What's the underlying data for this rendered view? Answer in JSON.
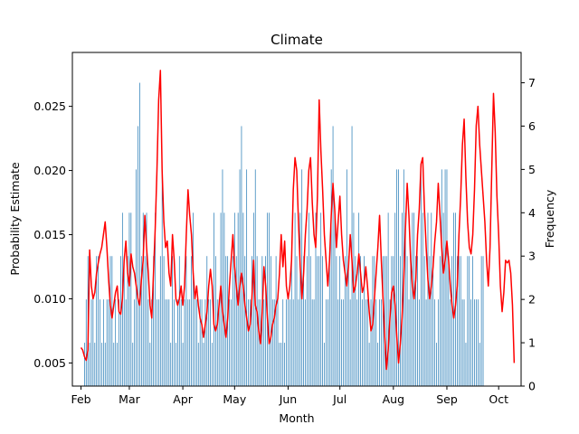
{
  "chart_data": {
    "type": "bar+line",
    "title": "Climate",
    "xlabel": "Month",
    "ylabel_left": "Probability Estimate",
    "ylabel_right": "Frequency",
    "x_tick_labels": [
      "Feb",
      "Mar",
      "Apr",
      "May",
      "Jun",
      "Jul",
      "Aug",
      "Sep",
      "Oct"
    ],
    "x_range_days": [
      -5,
      255
    ],
    "x_tick_days": [
      0,
      28,
      59,
      89,
      120,
      150,
      181,
      212,
      242
    ],
    "left_ylim": [
      0.0032,
      0.0292
    ],
    "left_ticks": [
      0.005,
      0.01,
      0.015,
      0.02,
      0.025
    ],
    "left_tick_labels": [
      "0.005",
      "0.010",
      "0.015",
      "0.020",
      "0.025"
    ],
    "right_ylim": [
      0,
      7.7
    ],
    "right_ticks": [
      0,
      1,
      2,
      3,
      4,
      5,
      6,
      7
    ],
    "right_tick_labels": [
      "0",
      "1",
      "2",
      "3",
      "4",
      "5",
      "6",
      "7"
    ],
    "grid": false,
    "bar_color": "#1f77b4",
    "line_color": "#ff0000",
    "bar_series": {
      "name": "Frequency",
      "start_day": 2,
      "values": [
        1,
        2,
        3,
        1,
        2,
        2,
        1,
        3,
        3,
        2,
        1,
        2,
        1,
        2,
        2,
        3,
        3,
        1,
        2,
        1,
        2,
        3,
        4,
        3,
        2,
        3,
        4,
        4,
        1,
        2,
        5,
        6,
        7,
        3,
        4,
        3,
        4,
        2,
        1,
        2,
        3,
        4,
        2,
        2,
        3,
        5,
        3,
        2,
        2,
        2,
        1,
        3,
        2,
        1,
        2,
        3,
        2,
        1,
        2,
        3,
        2,
        2,
        3,
        4,
        2,
        2,
        1,
        2,
        2,
        1,
        2,
        3,
        2,
        2,
        1,
        4,
        3,
        2,
        2,
        4,
        5,
        4,
        3,
        3,
        2,
        2,
        3,
        4,
        3,
        4,
        5,
        6,
        4,
        3,
        5,
        2,
        2,
        3,
        4,
        5,
        3,
        2,
        2,
        3,
        2,
        3,
        4,
        4,
        3,
        2,
        2,
        3,
        2,
        1,
        1,
        2,
        1,
        2,
        2,
        2,
        3,
        2,
        4,
        3,
        2,
        4,
        5,
        3,
        2,
        3,
        4,
        3,
        2,
        2,
        4,
        3,
        3,
        4,
        3,
        1,
        2,
        2,
        3,
        5,
        6,
        4,
        3,
        2,
        3,
        2,
        2,
        3,
        5,
        3,
        2,
        6,
        4,
        3,
        2,
        4,
        3,
        2,
        3,
        2,
        2,
        1,
        2,
        3,
        3,
        2,
        1,
        2,
        2,
        3,
        3,
        3,
        4,
        2,
        3,
        3,
        4,
        5,
        5,
        3,
        4,
        5,
        4,
        3,
        2,
        3,
        4,
        4,
        3,
        3,
        2,
        5,
        4,
        3,
        2,
        4,
        3,
        4,
        3,
        2,
        1,
        2,
        3,
        5,
        4,
        5,
        5,
        3,
        2,
        3,
        4,
        4,
        3,
        3,
        3,
        2,
        2,
        1,
        3,
        3,
        2,
        3,
        2,
        2,
        2,
        1,
        3,
        3
      ],
      "note_scale": "frequency counts per day, right axis"
    },
    "line_series": {
      "name": "Probability Estimate",
      "start_day": 0,
      "points": [
        [
          0,
          0.0062
        ],
        [
          1,
          0.006
        ],
        [
          2,
          0.0055
        ],
        [
          3,
          0.0052
        ],
        [
          4,
          0.006
        ],
        [
          5,
          0.0138
        ],
        [
          6,
          0.011
        ],
        [
          7,
          0.01
        ],
        [
          8,
          0.0105
        ],
        [
          9,
          0.012
        ],
        [
          10,
          0.0128
        ],
        [
          11,
          0.0135
        ],
        [
          12,
          0.014
        ],
        [
          13,
          0.015
        ],
        [
          14,
          0.016
        ],
        [
          15,
          0.014
        ],
        [
          16,
          0.0115
        ],
        [
          17,
          0.0095
        ],
        [
          18,
          0.0085
        ],
        [
          19,
          0.0095
        ],
        [
          20,
          0.0105
        ],
        [
          21,
          0.011
        ],
        [
          22,
          0.009
        ],
        [
          23,
          0.0088
        ],
        [
          24,
          0.01
        ],
        [
          25,
          0.013
        ],
        [
          26,
          0.0145
        ],
        [
          27,
          0.012
        ],
        [
          28,
          0.011
        ],
        [
          29,
          0.0135
        ],
        [
          30,
          0.0125
        ],
        [
          31,
          0.012
        ],
        [
          32,
          0.011
        ],
        [
          33,
          0.01
        ],
        [
          34,
          0.0095
        ],
        [
          35,
          0.0115
        ],
        [
          36,
          0.013
        ],
        [
          37,
          0.0165
        ],
        [
          38,
          0.014
        ],
        [
          39,
          0.012
        ],
        [
          40,
          0.0095
        ],
        [
          41,
          0.0085
        ],
        [
          42,
          0.012
        ],
        [
          43,
          0.0155
        ],
        [
          44,
          0.02
        ],
        [
          45,
          0.0255
        ],
        [
          46,
          0.0278
        ],
        [
          47,
          0.02
        ],
        [
          48,
          0.016
        ],
        [
          49,
          0.014
        ],
        [
          50,
          0.0145
        ],
        [
          51,
          0.012
        ],
        [
          52,
          0.011
        ],
        [
          53,
          0.015
        ],
        [
          54,
          0.013
        ],
        [
          55,
          0.01
        ],
        [
          56,
          0.0095
        ],
        [
          57,
          0.01
        ],
        [
          58,
          0.011
        ],
        [
          59,
          0.0095
        ],
        [
          60,
          0.011
        ],
        [
          61,
          0.015
        ],
        [
          62,
          0.0185
        ],
        [
          63,
          0.0165
        ],
        [
          64,
          0.015
        ],
        [
          65,
          0.012
        ],
        [
          66,
          0.01
        ],
        [
          67,
          0.011
        ],
        [
          68,
          0.0095
        ],
        [
          69,
          0.0085
        ],
        [
          70,
          0.008
        ],
        [
          71,
          0.007
        ],
        [
          72,
          0.008
        ],
        [
          73,
          0.009
        ],
        [
          74,
          0.011
        ],
        [
          75,
          0.0123
        ],
        [
          76,
          0.011
        ],
        [
          77,
          0.008
        ],
        [
          78,
          0.0075
        ],
        [
          79,
          0.008
        ],
        [
          80,
          0.0095
        ],
        [
          81,
          0.011
        ],
        [
          82,
          0.009
        ],
        [
          83,
          0.008
        ],
        [
          84,
          0.007
        ],
        [
          85,
          0.0085
        ],
        [
          86,
          0.011
        ],
        [
          87,
          0.013
        ],
        [
          88,
          0.015
        ],
        [
          89,
          0.0125
        ],
        [
          90,
          0.011
        ],
        [
          91,
          0.0095
        ],
        [
          92,
          0.011
        ],
        [
          93,
          0.012
        ],
        [
          94,
          0.011
        ],
        [
          95,
          0.0095
        ],
        [
          96,
          0.0085
        ],
        [
          97,
          0.0075
        ],
        [
          98,
          0.008
        ],
        [
          99,
          0.01
        ],
        [
          100,
          0.013
        ],
        [
          101,
          0.0095
        ],
        [
          102,
          0.009
        ],
        [
          103,
          0.0075
        ],
        [
          104,
          0.0065
        ],
        [
          105,
          0.009
        ],
        [
          106,
          0.0125
        ],
        [
          107,
          0.011
        ],
        [
          108,
          0.0085
        ],
        [
          109,
          0.0065
        ],
        [
          110,
          0.007
        ],
        [
          111,
          0.008
        ],
        [
          112,
          0.0085
        ],
        [
          113,
          0.0095
        ],
        [
          114,
          0.01
        ],
        [
          115,
          0.012
        ],
        [
          116,
          0.015
        ],
        [
          117,
          0.0125
        ],
        [
          118,
          0.0145
        ],
        [
          119,
          0.011
        ],
        [
          120,
          0.01
        ],
        [
          121,
          0.011
        ],
        [
          122,
          0.013
        ],
        [
          123,
          0.0185
        ],
        [
          124,
          0.021
        ],
        [
          125,
          0.02
        ],
        [
          126,
          0.016
        ],
        [
          127,
          0.0125
        ],
        [
          128,
          0.01
        ],
        [
          129,
          0.012
        ],
        [
          130,
          0.015
        ],
        [
          131,
          0.017
        ],
        [
          132,
          0.02
        ],
        [
          133,
          0.021
        ],
        [
          134,
          0.0175
        ],
        [
          135,
          0.015
        ],
        [
          136,
          0.014
        ],
        [
          137,
          0.018
        ],
        [
          138,
          0.0255
        ],
        [
          139,
          0.0215
        ],
        [
          140,
          0.0185
        ],
        [
          141,
          0.015
        ],
        [
          142,
          0.013
        ],
        [
          143,
          0.011
        ],
        [
          144,
          0.013
        ],
        [
          145,
          0.0165
        ],
        [
          146,
          0.019
        ],
        [
          147,
          0.017
        ],
        [
          148,
          0.014
        ],
        [
          149,
          0.016
        ],
        [
          150,
          0.018
        ],
        [
          151,
          0.015
        ],
        [
          152,
          0.013
        ],
        [
          153,
          0.012
        ],
        [
          154,
          0.011
        ],
        [
          155,
          0.0125
        ],
        [
          156,
          0.015
        ],
        [
          157,
          0.013
        ],
        [
          158,
          0.0105
        ],
        [
          159,
          0.011
        ],
        [
          160,
          0.012
        ],
        [
          161,
          0.0135
        ],
        [
          162,
          0.012
        ],
        [
          163,
          0.0105
        ],
        [
          164,
          0.011
        ],
        [
          165,
          0.0125
        ],
        [
          166,
          0.011
        ],
        [
          167,
          0.009
        ],
        [
          168,
          0.0075
        ],
        [
          169,
          0.008
        ],
        [
          170,
          0.01
        ],
        [
          171,
          0.012
        ],
        [
          172,
          0.014
        ],
        [
          173,
          0.0165
        ],
        [
          174,
          0.013
        ],
        [
          175,
          0.01
        ],
        [
          176,
          0.007
        ],
        [
          177,
          0.0045
        ],
        [
          178,
          0.006
        ],
        [
          179,
          0.0085
        ],
        [
          180,
          0.0105
        ],
        [
          181,
          0.011
        ],
        [
          182,
          0.0095
        ],
        [
          183,
          0.007
        ],
        [
          184,
          0.005
        ],
        [
          185,
          0.0065
        ],
        [
          186,
          0.0085
        ],
        [
          187,
          0.0115
        ],
        [
          188,
          0.0155
        ],
        [
          189,
          0.019
        ],
        [
          190,
          0.0165
        ],
        [
          191,
          0.013
        ],
        [
          192,
          0.011
        ],
        [
          193,
          0.01
        ],
        [
          194,
          0.0115
        ],
        [
          195,
          0.015
        ],
        [
          196,
          0.017
        ],
        [
          197,
          0.0205
        ],
        [
          198,
          0.021
        ],
        [
          199,
          0.017
        ],
        [
          200,
          0.014
        ],
        [
          201,
          0.0115
        ],
        [
          202,
          0.01
        ],
        [
          203,
          0.011
        ],
        [
          204,
          0.0125
        ],
        [
          205,
          0.0145
        ],
        [
          206,
          0.016
        ],
        [
          207,
          0.019
        ],
        [
          208,
          0.0165
        ],
        [
          209,
          0.014
        ],
        [
          210,
          0.012
        ],
        [
          211,
          0.013
        ],
        [
          212,
          0.0145
        ],
        [
          213,
          0.013
        ],
        [
          214,
          0.011
        ],
        [
          215,
          0.0095
        ],
        [
          216,
          0.0085
        ],
        [
          217,
          0.0095
        ],
        [
          218,
          0.011
        ],
        [
          219,
          0.015
        ],
        [
          220,
          0.018
        ],
        [
          221,
          0.022
        ],
        [
          222,
          0.024
        ],
        [
          223,
          0.0195
        ],
        [
          224,
          0.016
        ],
        [
          225,
          0.014
        ],
        [
          226,
          0.0135
        ],
        [
          227,
          0.015
        ],
        [
          228,
          0.0185
        ],
        [
          229,
          0.0235
        ],
        [
          230,
          0.025
        ],
        [
          231,
          0.022
        ],
        [
          232,
          0.02
        ],
        [
          233,
          0.018
        ],
        [
          234,
          0.016
        ],
        [
          235,
          0.013
        ],
        [
          236,
          0.011
        ],
        [
          237,
          0.014
        ],
        [
          238,
          0.02
        ],
        [
          239,
          0.026
        ],
        [
          240,
          0.023
        ],
        [
          241,
          0.018
        ],
        [
          242,
          0.015
        ],
        [
          243,
          0.011
        ],
        [
          244,
          0.009
        ],
        [
          245,
          0.0105
        ],
        [
          246,
          0.013
        ],
        [
          247,
          0.0128
        ],
        [
          248,
          0.013
        ],
        [
          249,
          0.012
        ],
        [
          250,
          0.0095
        ],
        [
          251,
          0.005
        ]
      ]
    }
  }
}
